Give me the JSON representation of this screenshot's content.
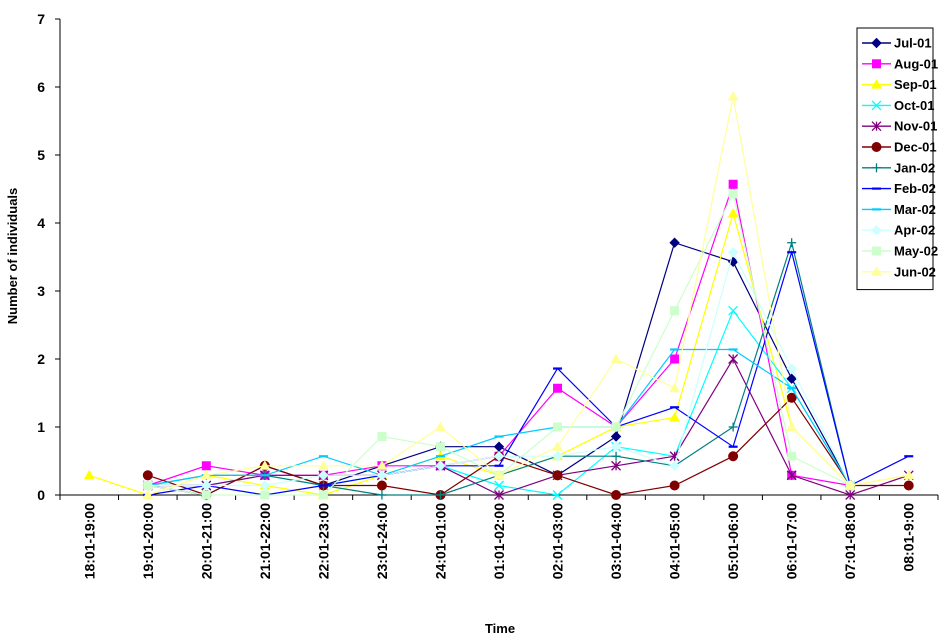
{
  "chart_data": {
    "type": "line",
    "title": "",
    "xlabel": "Time",
    "ylabel": "Number of individuals",
    "ylim": [
      0,
      7
    ],
    "yticks": [
      "0",
      "1",
      "2",
      "3",
      "4",
      "5",
      "6",
      "7"
    ],
    "grid": false,
    "legend_position": "top-right",
    "categories": [
      "18:01-19:00",
      "19:01-20:00",
      "20:01-21:00",
      "21:01-22:00",
      "22:01-23:00",
      "23:01-24:00",
      "24:01-01:00",
      "01:01-02:00",
      "02:01-03:00",
      "03:01-04:00",
      "04:01-05:00",
      "05:01-06:00",
      "06:01-07:00",
      "07:01-08:00",
      "08:01-9:00"
    ],
    "series": [
      {
        "name": "Jul-01",
        "color": "#000080",
        "marker": "diamond",
        "values": [
          null,
          0.14,
          0.0,
          0.43,
          0.14,
          0.43,
          0.71,
          0.71,
          0.29,
          0.86,
          3.71,
          3.43,
          1.71,
          0.14,
          null
        ]
      },
      {
        "name": "Aug-01",
        "color": "#ff00ff",
        "marker": "square",
        "values": [
          null,
          0.14,
          0.43,
          0.29,
          0.29,
          0.43,
          0.43,
          0.57,
          1.57,
          1.0,
          2.0,
          4.57,
          0.29,
          0.14,
          null
        ]
      },
      {
        "name": "Sep-01",
        "color": "#ffff00",
        "marker": "triangle",
        "values": [
          0.29,
          0.0,
          0.29,
          0.14,
          0.0,
          0.29,
          0.57,
          0.29,
          0.57,
          1.0,
          1.14,
          4.14,
          1.0,
          0.14,
          0.29
        ]
      },
      {
        "name": "Oct-01",
        "color": "#00ffff",
        "marker": "x",
        "values": [
          null,
          0.14,
          0.14,
          0.29,
          0.14,
          0.29,
          0.43,
          0.14,
          0.0,
          0.71,
          0.57,
          2.71,
          1.57,
          0.14,
          null
        ]
      },
      {
        "name": "Nov-01",
        "color": "#800080",
        "marker": "star",
        "values": [
          null,
          0.14,
          0.14,
          0.29,
          0.29,
          0.29,
          0.43,
          0.0,
          0.29,
          0.43,
          0.57,
          2.0,
          0.29,
          0.0,
          0.29
        ]
      },
      {
        "name": "Dec-01",
        "color": "#800000",
        "marker": "circle",
        "values": [
          null,
          0.29,
          0.0,
          0.43,
          0.14,
          0.14,
          0.0,
          0.57,
          0.29,
          0.0,
          0.14,
          0.57,
          1.43,
          0.14,
          0.14
        ]
      },
      {
        "name": "Jan-02",
        "color": "#008080",
        "marker": "plus",
        "values": [
          null,
          0.14,
          0.29,
          0.29,
          0.14,
          0.0,
          0.0,
          0.29,
          0.57,
          0.57,
          0.43,
          1.0,
          3.71,
          0.14,
          null
        ]
      },
      {
        "name": "Feb-02",
        "color": "#0000ff",
        "marker": "dash",
        "values": [
          null,
          0.0,
          0.14,
          0.0,
          0.14,
          0.29,
          0.43,
          0.43,
          1.86,
          1.0,
          1.29,
          0.71,
          3.57,
          0.14,
          0.57
        ]
      },
      {
        "name": "Mar-02",
        "color": "#00ccff",
        "marker": "dash",
        "values": [
          null,
          0.14,
          0.29,
          0.29,
          0.57,
          0.29,
          0.57,
          0.86,
          1.0,
          1.0,
          2.14,
          2.14,
          1.57,
          0.14,
          null
        ]
      },
      {
        "name": "Apr-02",
        "color": "#ccffff",
        "marker": "diamond",
        "values": [
          null,
          0.14,
          0.14,
          0.14,
          0.29,
          0.29,
          0.43,
          0.57,
          0.57,
          0.71,
          0.43,
          3.57,
          1.86,
          0.14,
          null
        ]
      },
      {
        "name": "May-02",
        "color": "#ccffcc",
        "marker": "square",
        "values": [
          null,
          0.14,
          0.0,
          0.0,
          0.0,
          0.86,
          0.71,
          0.29,
          1.0,
          1.0,
          2.71,
          4.43,
          0.57,
          0.14,
          null
        ]
      },
      {
        "name": "Jun-02",
        "color": "#ffff99",
        "marker": "triangle",
        "values": [
          null,
          0.0,
          0.29,
          0.43,
          0.43,
          0.43,
          1.0,
          0.29,
          0.71,
          2.0,
          1.57,
          5.86,
          1.0,
          0.14,
          0.29
        ]
      }
    ]
  }
}
